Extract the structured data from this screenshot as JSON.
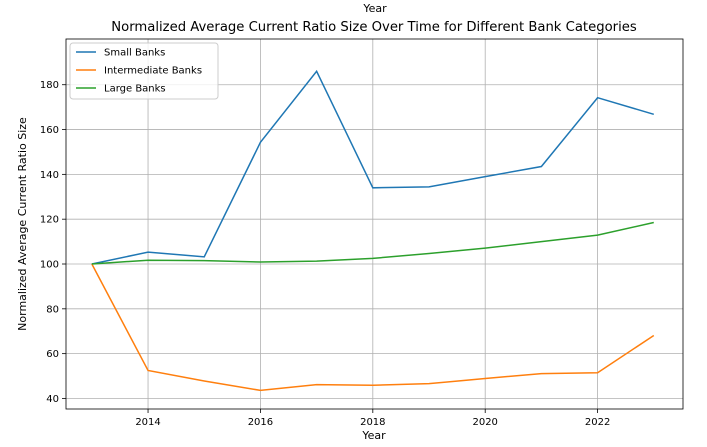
{
  "clipped_top_label": "Year",
  "chart_data": {
    "type": "line",
    "title": "Normalized Average Current Ratio Size Over Time for Different Bank Categories",
    "xlabel": "Year",
    "ylabel": "Normalized Average Current Ratio Size",
    "x": [
      2013,
      2014,
      2015,
      2016,
      2017,
      2018,
      2019,
      2020,
      2021,
      2022,
      2023
    ],
    "xlim": [
      2012.54,
      2023.52
    ],
    "ylim": [
      35.3,
      200.4
    ],
    "xticks": [
      "2014",
      "2016",
      "2018",
      "2020",
      "2022"
    ],
    "yticks": [
      "40",
      "60",
      "80",
      "100",
      "120",
      "140",
      "160",
      "180"
    ],
    "grid": true,
    "legend_position": "top-left",
    "series": [
      {
        "name": "Small Banks",
        "color": "#1f77b4",
        "values": [
          100,
          105.3,
          103.2,
          154.3,
          186.0,
          134.0,
          134.4,
          139.0,
          143.5,
          174.2,
          166.8
        ]
      },
      {
        "name": "Intermediate Banks",
        "color": "#ff7f0e",
        "values": [
          100,
          52.5,
          47.8,
          43.6,
          46.2,
          45.9,
          46.6,
          48.9,
          51.1,
          51.5,
          68.1
        ]
      },
      {
        "name": "Large Banks",
        "color": "#2ca02c",
        "values": [
          100,
          101.7,
          101.5,
          100.9,
          101.3,
          102.5,
          104.7,
          107.1,
          110.0,
          112.9,
          118.5
        ]
      }
    ]
  }
}
